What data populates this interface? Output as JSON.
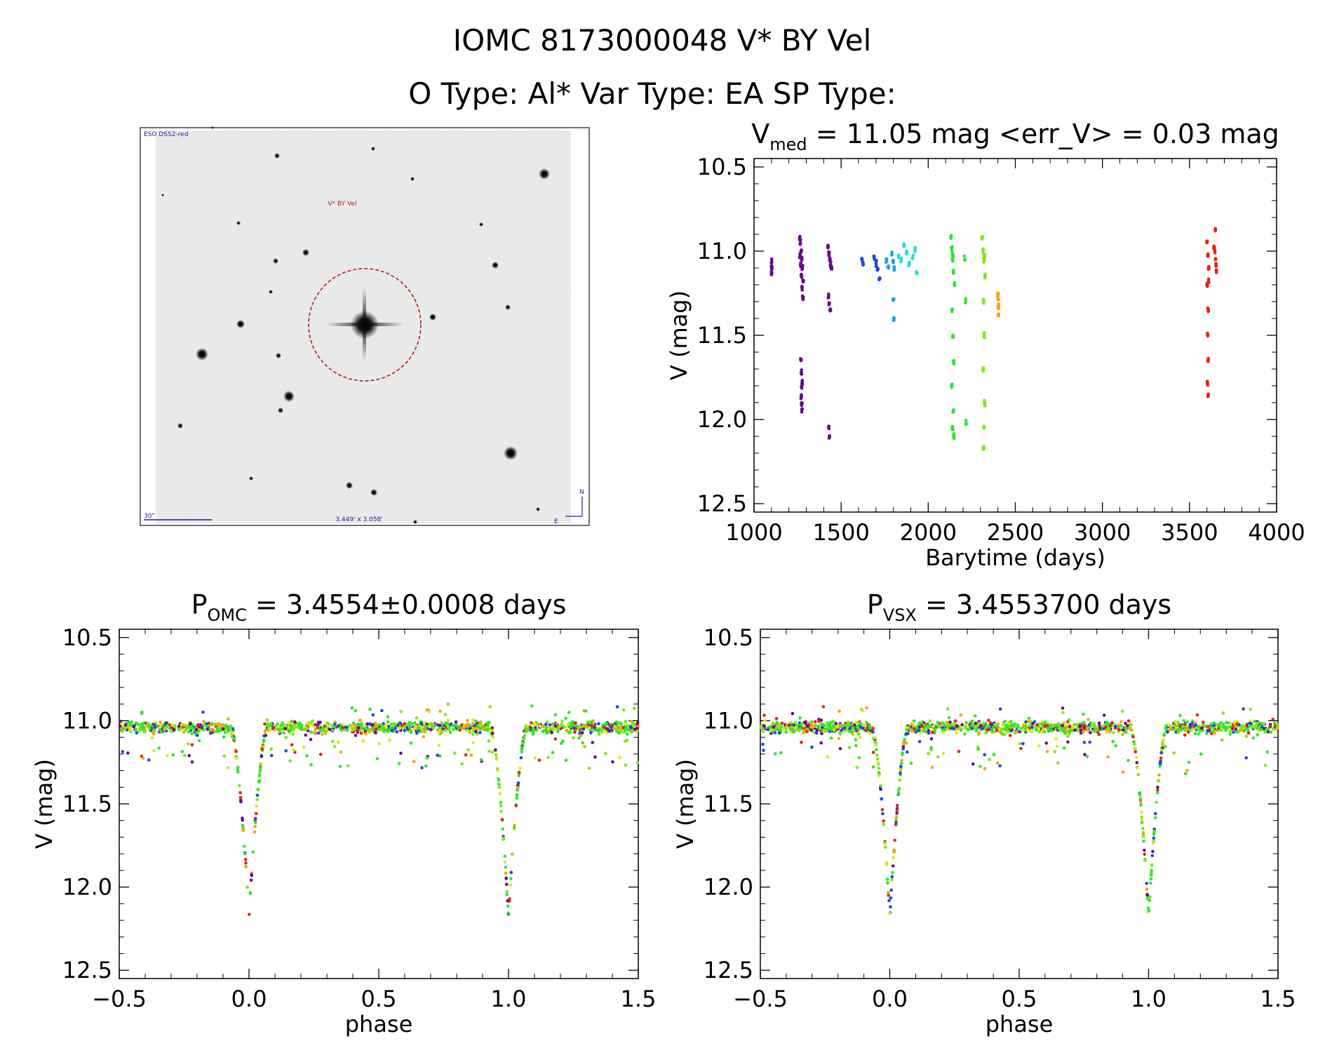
{
  "header": {
    "line1": "IOMC 8173000048   V* BY Vel",
    "line2": "O Type: Al*  Var Type: EA  SP Type:"
  },
  "finder": {
    "survey_label": "ESO DSS2-red",
    "target_label": "V* BY Vel",
    "scale_label": "30\"",
    "fov_label": "3.449' x 3.058'",
    "north_label": "N",
    "east_label": "E"
  },
  "colors": {
    "purple": "#6a0a8a",
    "blue": "#1f47e0",
    "azure": "#1aa3e8",
    "cyan": "#22e0d8",
    "green": "#2ce82c",
    "lime": "#7ee81a",
    "yellow": "#dcea18",
    "orange": "#f5a312",
    "red": "#e8230f",
    "circle": "#c01818"
  },
  "chart_data": [
    {
      "id": "lightcurve",
      "type": "scatter",
      "title_main": "V",
      "title_sub": "med",
      "title_rest": " = 11.05 mag <err_V> = 0.03 mag",
      "xlabel": "Barytime (days)",
      "ylabel": "V (mag)",
      "xlim": [
        1000,
        4000
      ],
      "ylim": [
        12.55,
        10.45
      ],
      "xticks": [
        1000,
        1500,
        2000,
        2500,
        3000,
        3500,
        4000
      ],
      "xtick_labels": [
        "1000",
        "1500",
        "2000",
        "2500",
        "3000",
        "3500",
        "4000"
      ],
      "yticks": [
        10.5,
        11.0,
        11.5,
        12.0,
        12.5
      ],
      "ytick_labels": [
        "10.5",
        "11.0",
        "11.5",
        "12.0",
        "12.5"
      ],
      "series": [
        {
          "name": "season-1100",
          "color": "purple",
          "x": [
            1100,
            1101,
            1102,
            1100
          ],
          "y": [
            11.07,
            11.09,
            11.11,
            11.14
          ]
        },
        {
          "name": "season-1270",
          "color": "purple",
          "x": [
            1262,
            1266,
            1270,
            1274,
            1278,
            1282,
            1264,
            1268,
            1272,
            1276,
            1280,
            1270,
            1272,
            1274,
            1271,
            1273,
            1275,
            1277
          ],
          "y": [
            10.92,
            10.95,
            11.0,
            11.05,
            11.1,
            11.18,
            11.02,
            11.08,
            11.15,
            11.22,
            11.28,
            11.65,
            11.72,
            11.8,
            11.86,
            11.9,
            11.94,
            11.78
          ]
        },
        {
          "name": "season-1430",
          "color": "purple",
          "x": [
            1425,
            1430,
            1435,
            1440,
            1445,
            1428,
            1432,
            1438,
            1430,
            1433
          ],
          "y": [
            10.98,
            11.02,
            11.05,
            11.08,
            11.1,
            11.27,
            11.31,
            11.35,
            12.04,
            12.1
          ]
        },
        {
          "name": "season-1620",
          "color": "blue",
          "x": [
            1620,
            1625,
            1690,
            1700,
            1710,
            1720
          ],
          "y": [
            11.05,
            11.07,
            11.03,
            11.07,
            11.11,
            11.16
          ]
        },
        {
          "name": "season-1780",
          "color": "azure",
          "x": [
            1760,
            1770,
            1790,
            1800,
            1805,
            1800,
            1803
          ],
          "y": [
            11.05,
            11.09,
            11.02,
            11.06,
            11.1,
            11.29,
            11.41
          ]
        },
        {
          "name": "season-1860",
          "color": "cyan",
          "x": [
            1830,
            1845,
            1860,
            1875,
            1890,
            1910,
            1925,
            1935
          ],
          "y": [
            11.03,
            11.06,
            10.97,
            11.01,
            11.08,
            11.04,
            10.99,
            11.13
          ]
        },
        {
          "name": "season-2150",
          "color": "green",
          "x": [
            2130,
            2135,
            2140,
            2145,
            2150,
            2138,
            2142,
            2146,
            2136,
            2144,
            2140,
            2148,
            2141,
            2210,
            2215,
            2218
          ],
          "y": [
            10.92,
            10.98,
            11.05,
            11.12,
            11.2,
            11.35,
            11.5,
            11.65,
            11.8,
            11.95,
            12.05,
            12.1,
            11.02,
            11.05,
            11.3,
            12.02
          ]
        },
        {
          "name": "season-2320",
          "color": "lime",
          "x": [
            2310,
            2315,
            2320,
            2325,
            2318,
            2322,
            2316,
            2324,
            2320,
            2319,
            2323
          ],
          "y": [
            10.92,
            11.0,
            11.05,
            11.15,
            11.3,
            11.5,
            11.7,
            11.9,
            12.05,
            12.17,
            11.03
          ]
        },
        {
          "name": "season-2400",
          "color": "orange",
          "x": [
            2400,
            2402,
            2404,
            2403
          ],
          "y": [
            11.26,
            11.29,
            11.33,
            11.38
          ]
        },
        {
          "name": "season-3610",
          "color": "red",
          "x": [
            3600,
            3605,
            3610,
            3602,
            3608,
            3604,
            3606,
            3603,
            3607,
            3609
          ],
          "y": [
            10.95,
            11.02,
            11.1,
            11.2,
            11.35,
            11.5,
            11.65,
            11.78,
            11.86,
            11.18
          ]
        },
        {
          "name": "season-3650",
          "color": "red",
          "x": [
            3640,
            3645,
            3650,
            3655,
            3648,
            3652
          ],
          "y": [
            10.97,
            11.0,
            11.05,
            11.12,
            10.88,
            11.08
          ]
        }
      ]
    },
    {
      "id": "phase_omc",
      "type": "scatter",
      "title_main": "P",
      "title_sub": "OMC",
      "title_rest": " = 3.4554±0.0008 days",
      "xlabel": "phase",
      "ylabel": "V (mag)",
      "xlim": [
        -0.5,
        1.5
      ],
      "ylim": [
        12.55,
        10.45
      ],
      "xticks": [
        -0.5,
        0.0,
        0.5,
        1.0,
        1.5
      ],
      "xtick_labels": [
        "−0.5",
        "0.0",
        "0.5",
        "1.0",
        "1.5"
      ],
      "yticks": [
        10.5,
        11.0,
        11.5,
        12.0,
        12.5
      ],
      "ytick_labels": [
        "10.5",
        "11.0",
        "11.5",
        "12.0",
        "12.5"
      ],
      "curve": {
        "baseline": 11.04,
        "eclipse_phases": [
          0.0,
          1.0
        ],
        "eclipse_depth": 12.17,
        "eclipse_half_width": 0.07,
        "shoulder": 11.2
      }
    },
    {
      "id": "phase_vsx",
      "type": "scatter",
      "title_main": "P",
      "title_sub": "VSX",
      "title_rest": " = 3.4553700 days",
      "xlabel": "phase",
      "ylabel": "V (mag)",
      "xlim": [
        -0.5,
        1.5
      ],
      "ylim": [
        12.55,
        10.45
      ],
      "xticks": [
        -0.5,
        0.0,
        0.5,
        1.0,
        1.5
      ],
      "xtick_labels": [
        "−0.5",
        "0.0",
        "0.5",
        "1.0",
        "1.5"
      ],
      "yticks": [
        10.5,
        11.0,
        11.5,
        12.0,
        12.5
      ],
      "ytick_labels": [
        "10.5",
        "11.0",
        "11.5",
        "12.0",
        "12.5"
      ],
      "curve": {
        "baseline": 11.04,
        "eclipse_phases": [
          0.0,
          1.0
        ],
        "eclipse_depth": 12.17,
        "eclipse_half_width": 0.07,
        "shoulder": 11.2
      }
    }
  ]
}
